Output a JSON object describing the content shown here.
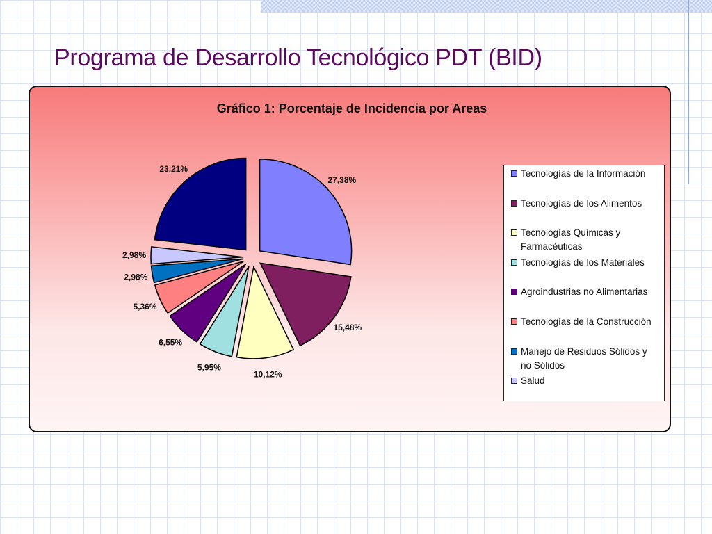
{
  "slide": {
    "title": "Programa de Desarrollo Tecnológico PDT (BID)"
  },
  "chart_data": {
    "type": "pie",
    "title": "Gráfico 1: Porcentaje de Incidencia por Areas",
    "legend_position": "right",
    "exploded": true,
    "slices": [
      {
        "label": "Tecnologías de la Información",
        "value": 27.38,
        "display": "27,38%",
        "color": "#8080ff"
      },
      {
        "label": "Tecnologías de los Alimentos",
        "value": 15.48,
        "display": "15,48%",
        "color": "#7f1f5f"
      },
      {
        "label": "Tecnologías Químicas y Farmacéuticas",
        "value": 10.12,
        "display": "10,12%",
        "color": "#ffffc0"
      },
      {
        "label": "Tecnologías de los Materiales",
        "value": 5.95,
        "display": "5,95%",
        "color": "#a0e0e0"
      },
      {
        "label": "Agroindustrias no Alimentarias",
        "value": 6.55,
        "display": "6,55%",
        "color": "#600080"
      },
      {
        "label": "Tecnologías de la Construcción",
        "value": 5.36,
        "display": "5,36%",
        "color": "#ff8080"
      },
      {
        "label": "Manejo de Residuos Sólidos y no Sólidos",
        "value": 2.98,
        "display": "2,98%",
        "color": "#0070c0"
      },
      {
        "label": "Salud",
        "value": 2.98,
        "display": "2,98%",
        "color": "#c8c8ff"
      },
      {
        "label": "",
        "value": 23.21,
        "display": "23,21%",
        "color": "#000080"
      }
    ]
  }
}
